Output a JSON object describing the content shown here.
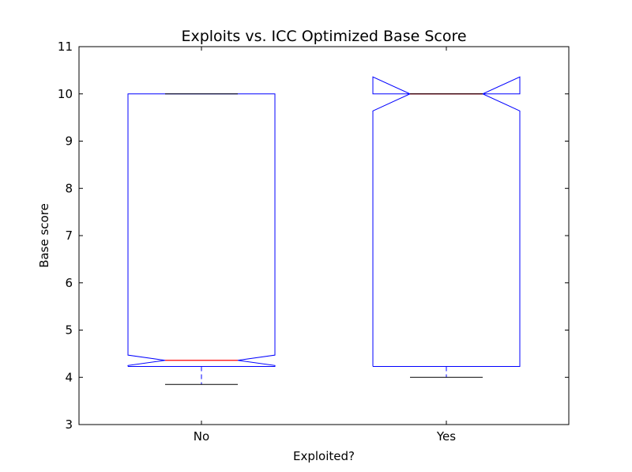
{
  "chart_data": {
    "type": "boxplot",
    "title": "Exploits vs. ICC Optimized Base Score",
    "xlabel": "Exploited?",
    "ylabel": "Base score",
    "ylim": [
      3,
      11
    ],
    "yticks": [
      3,
      4,
      5,
      6,
      7,
      8,
      9,
      10,
      11
    ],
    "categories": [
      "No",
      "Yes"
    ],
    "notched": true,
    "grid": false,
    "colors": {
      "box": "#0000ff",
      "median": "#ff0000",
      "cap": "#000000"
    },
    "boxes": [
      {
        "category": "No",
        "whisker_low": 3.85,
        "q1": 4.23,
        "median": 4.36,
        "q3": 10.0,
        "whisker_high": 10.0,
        "notch_low": 4.25,
        "notch_high": 4.47
      },
      {
        "category": "Yes",
        "whisker_low": 4.0,
        "q1": 4.23,
        "median": 10.0,
        "q3": 10.0,
        "whisker_high": 10.0,
        "notch_low": 9.64,
        "notch_high": 10.36
      }
    ]
  }
}
